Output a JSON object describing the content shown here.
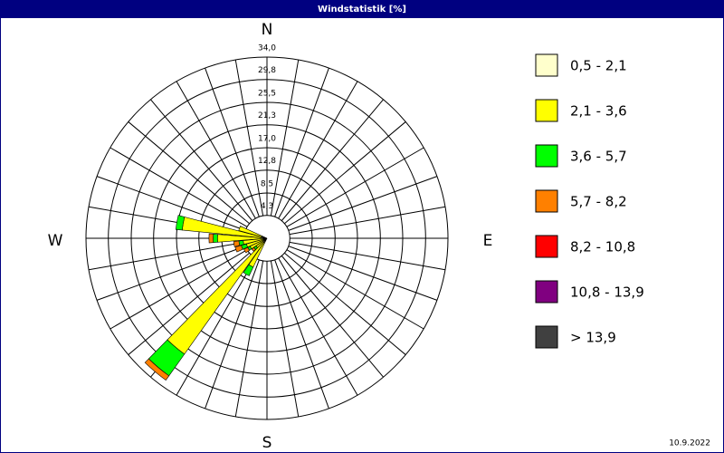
{
  "chart_data": {
    "type": "windrose",
    "title": "Windstatistik [%]",
    "compass": [
      "N",
      "E",
      "S",
      "W"
    ],
    "x": [
      210,
      220,
      230,
      240,
      250,
      260,
      270,
      280,
      290
    ],
    "series": [
      {
        "name": "0,5 - 2,1",
        "color": "#ffffcc",
        "values": [
          0.5,
          1.0,
          0.5,
          0.5,
          0.5,
          0.5,
          0.8,
          1.0,
          1.0
        ]
      },
      {
        "name": "2,1 - 3,6",
        "color": "#ffff00",
        "values": [
          5.5,
          25.7,
          2.0,
          3.0,
          3.5,
          4.0,
          8.5,
          15.0,
          4.5
        ]
      },
      {
        "name": "3,6 - 5,7",
        "color": "#00ff00",
        "values": [
          1.8,
          5.0,
          0.5,
          0.5,
          1.0,
          0.8,
          0.8,
          1.2,
          0
        ]
      },
      {
        "name": "5,7 - 8,2",
        "color": "#ff8000",
        "values": [
          0,
          1.0,
          0.5,
          0.8,
          1.2,
          1.0,
          0.8,
          0,
          0
        ]
      },
      {
        "name": "8,2 - 10,8",
        "color": "#ff0000",
        "values": [
          0,
          0,
          0,
          0,
          0,
          0,
          0,
          0,
          0
        ]
      },
      {
        "name": "10,8 - 13,9",
        "color": "#800080",
        "values": [
          0,
          0,
          0,
          0,
          0,
          0,
          0,
          0,
          0
        ]
      },
      {
        "name": "> 13,9",
        "color": "#404040",
        "values": [
          0,
          0,
          0,
          0,
          0,
          0,
          0,
          0,
          0
        ]
      }
    ],
    "rlim": [
      0,
      34
    ],
    "rticks": [
      {
        "value": 4.3,
        "label": "4,3"
      },
      {
        "value": 8.5,
        "label": "8,5"
      },
      {
        "value": 12.8,
        "label": "12,8"
      },
      {
        "value": 17.0,
        "label": "17,0"
      },
      {
        "value": 21.3,
        "label": "21,3"
      },
      {
        "value": 25.5,
        "label": "25,5"
      },
      {
        "value": 29.8,
        "label": "29,8"
      },
      {
        "value": 34.0,
        "label": "34,0"
      }
    ],
    "footnote": "10.9.2022"
  }
}
